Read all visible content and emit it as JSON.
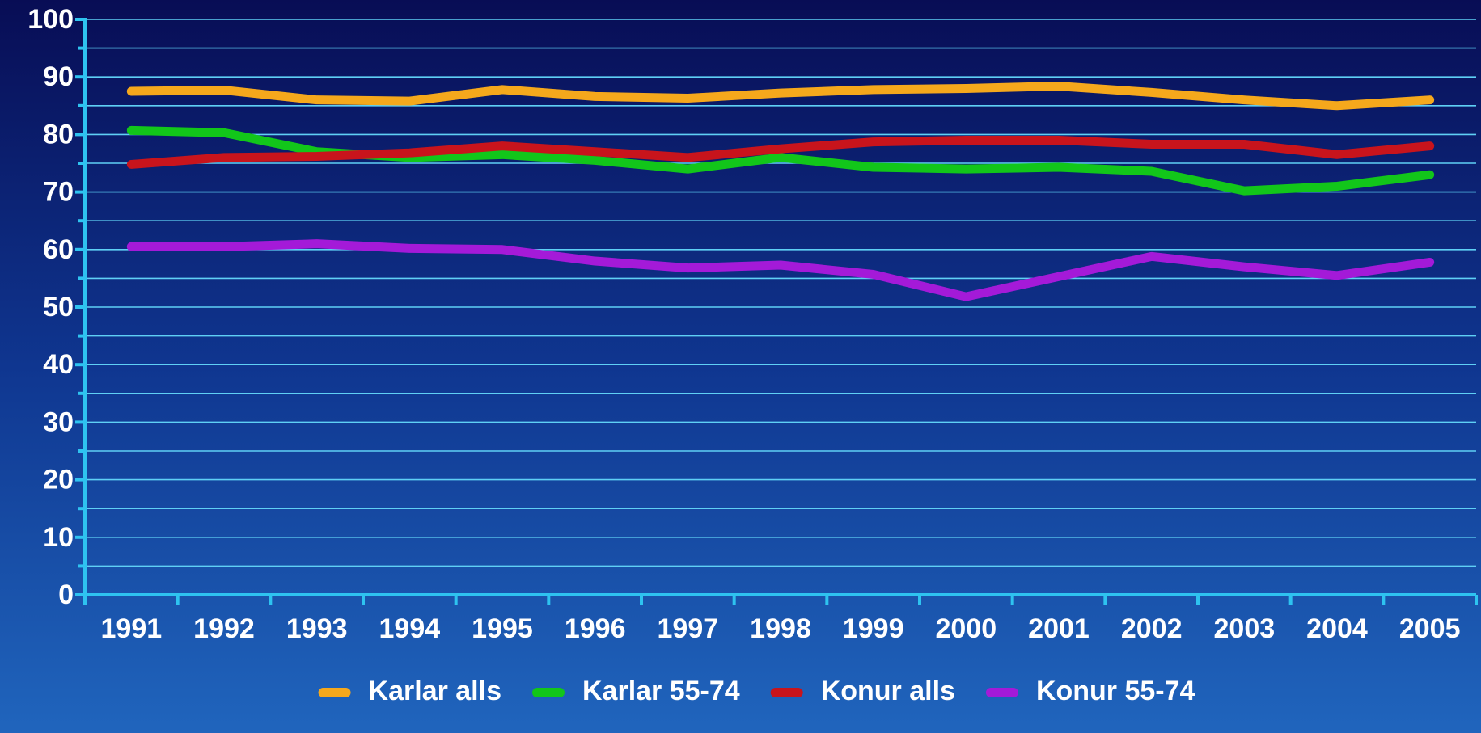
{
  "chart_data": {
    "type": "line",
    "x": [
      1991,
      1992,
      1993,
      1994,
      1995,
      1996,
      1997,
      1998,
      1999,
      2000,
      2001,
      2002,
      2003,
      2004,
      2005
    ],
    "xlim": [
      1990.5,
      2005.5
    ],
    "ylim": [
      0,
      100
    ],
    "yticks": [
      0,
      10,
      20,
      30,
      40,
      50,
      60,
      70,
      80,
      90,
      100
    ],
    "yminor_ticks": [
      5,
      15,
      25,
      35,
      45,
      55,
      65,
      75,
      85,
      95
    ],
    "grid": true,
    "legend": "bottom",
    "series": [
      {
        "name": "Karlar alls",
        "color": "#f5a81c",
        "values": [
          87.5,
          87.7,
          86,
          85.8,
          87.8,
          86.6,
          86.3,
          87.2,
          87.8,
          88,
          88.4,
          87.3,
          86,
          85,
          86
        ]
      },
      {
        "name": "Karlar 55-74",
        "color": "#12c61a",
        "values": [
          80.7,
          80.3,
          77,
          76,
          76.5,
          75.5,
          74,
          76,
          74.3,
          74,
          74.3,
          73.6,
          70.2,
          71,
          73
        ]
      },
      {
        "name": "Konur alls",
        "color": "#c8141c",
        "values": [
          74.8,
          76,
          76.2,
          76.8,
          78,
          77,
          76,
          77.5,
          78.7,
          79,
          79,
          78.3,
          78.3,
          76.5,
          78
        ]
      },
      {
        "name": "Konur 55-74",
        "color": "#a41ad8",
        "values": [
          60.5,
          60.5,
          61,
          60.2,
          60,
          58,
          56.8,
          57.3,
          55.7,
          51.8,
          55.3,
          58.8,
          57,
          55.5,
          57.8
        ]
      }
    ]
  }
}
